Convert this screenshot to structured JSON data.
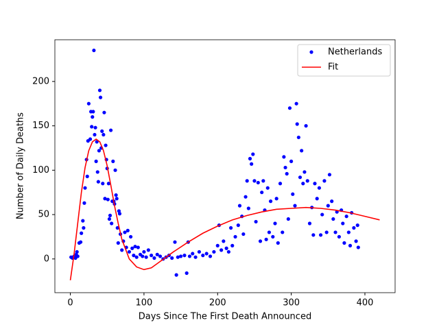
{
  "chart_data": {
    "type": "scatter",
    "xlabel": "Days Since The First Death Announced",
    "ylabel": "Number of Daily Deaths",
    "xlim": [
      -21,
      441
    ],
    "ylim": [
      -38,
      247
    ],
    "xticks": [
      0,
      100,
      200,
      300,
      400
    ],
    "yticks": [
      0,
      50,
      100,
      150,
      200
    ],
    "grid": false,
    "legend": "upper right",
    "series": [
      {
        "name": "Netherlands",
        "type": "scatter",
        "color": "#0000ff",
        "x": [
          1,
          3,
          5,
          7,
          8,
          9,
          10,
          12,
          14,
          15,
          17,
          18,
          19,
          20,
          22,
          23,
          24,
          25,
          27,
          28,
          29,
          30,
          31,
          32,
          33,
          34,
          35,
          36,
          37,
          38,
          39,
          40,
          41,
          42,
          43,
          44,
          45,
          46,
          47,
          48,
          49,
          50,
          51,
          52,
          53,
          54,
          55,
          56,
          57,
          58,
          59,
          60,
          61,
          62,
          63,
          64,
          65,
          66,
          67,
          68,
          70,
          72,
          74,
          76,
          78,
          80,
          82,
          84,
          86,
          88,
          90,
          92,
          95,
          98,
          100,
          103,
          106,
          110,
          114,
          118,
          122,
          126,
          130,
          134,
          138,
          142,
          144,
          146,
          150,
          155,
          158,
          160,
          162,
          166,
          170,
          175,
          180,
          185,
          190,
          195,
          200,
          202,
          205,
          208,
          212,
          215,
          218,
          220,
          224,
          228,
          230,
          233,
          235,
          238,
          240,
          242,
          244,
          246,
          248,
          250,
          252,
          255,
          258,
          260,
          262,
          264,
          266,
          268,
          270,
          272,
          275,
          278,
          280,
          282,
          285,
          288,
          290,
          292,
          294,
          296,
          298,
          300,
          302,
          305,
          307,
          308,
          310,
          312,
          314,
          316,
          318,
          320,
          322,
          325,
          328,
          330,
          332,
          335,
          338,
          340,
          342,
          345,
          348,
          350,
          352,
          355,
          357,
          360,
          362,
          365,
          368,
          370,
          372,
          375,
          378,
          380,
          382,
          385,
          388,
          390,
          391
        ],
        "values": [
          2,
          1,
          3,
          1,
          5,
          8,
          3,
          18,
          19,
          29,
          43,
          35,
          63,
          80,
          112,
          93,
          133,
          175,
          135,
          166,
          149,
          160,
          166,
          235,
          140,
          148,
          110,
          132,
          98,
          87,
          122,
          190,
          182,
          125,
          144,
          85,
          140,
          165,
          68,
          128,
          112,
          102,
          67,
          85,
          45,
          49,
          145,
          40,
          65,
          110,
          65,
          62,
          100,
          72,
          68,
          35,
          18,
          54,
          51,
          28,
          10,
          20,
          30,
          13,
          32,
          8,
          25,
          12,
          4,
          14,
          2,
          13,
          5,
          3,
          8,
          2,
          10,
          4,
          1,
          5,
          3,
          0,
          2,
          4,
          1,
          19,
          -18,
          2,
          3,
          4,
          -16,
          19,
          3,
          6,
          2,
          8,
          4,
          6,
          3,
          8,
          15,
          38,
          10,
          20,
          12,
          8,
          35,
          15,
          25,
          38,
          60,
          48,
          28,
          70,
          88,
          57,
          113,
          107,
          118,
          88,
          42,
          86,
          20,
          75,
          88,
          55,
          22,
          80,
          30,
          65,
          25,
          40,
          68,
          18,
          85,
          30,
          115,
          103,
          96,
          45,
          170,
          110,
          73,
          60,
          175,
          152,
          137,
          92,
          122,
          85,
          98,
          150,
          88,
          40,
          58,
          27,
          85,
          68,
          80,
          27,
          50,
          88,
          30,
          60,
          95,
          65,
          45,
          30,
          53,
          25,
          55,
          40,
          18,
          48,
          30,
          15,
          52,
          35,
          20,
          38,
          13
        ]
      },
      {
        "name": "Fit",
        "type": "line",
        "color": "#ff0000",
        "x": [
          0,
          5,
          10,
          15,
          20,
          25,
          30,
          35,
          40,
          45,
          50,
          55,
          60,
          65,
          70,
          80,
          90,
          100,
          110,
          120,
          140,
          160,
          180,
          200,
          220,
          240,
          260,
          280,
          300,
          320,
          340,
          360,
          380,
          400,
          420
        ],
        "values": [
          -24,
          5,
          40,
          75,
          103,
          122,
          132,
          135,
          132,
          122,
          105,
          83,
          60,
          40,
          22,
          0,
          -9,
          -12,
          -10,
          -4,
          8,
          19,
          29,
          37,
          44,
          49,
          53,
          56,
          57,
          58,
          57,
          55,
          52,
          48,
          44
        ]
      }
    ]
  }
}
